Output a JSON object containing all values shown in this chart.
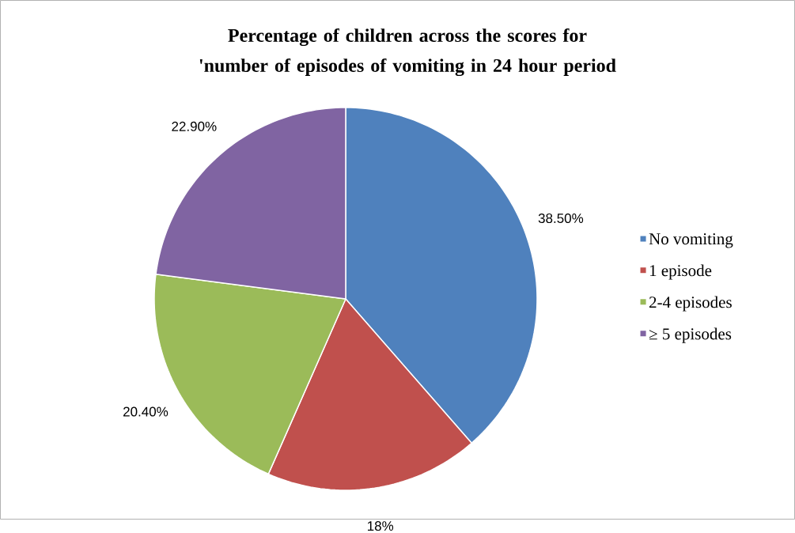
{
  "chart_data": {
    "type": "pie",
    "title": "Percentage of children across the scores for 'number of episodes of vomiting in 24 hour period",
    "categories": [
      "No vomiting",
      "1 episode",
      "2-4 episodes",
      "≥ 5 episodes"
    ],
    "values": [
      38.5,
      18,
      20.4,
      22.9
    ],
    "value_labels": [
      "38.50%",
      "18%",
      "20.40%",
      "22.90%"
    ],
    "colors": [
      "#4f81bd",
      "#c0504d",
      "#9bbb59",
      "#8064a2"
    ],
    "legend": "right"
  }
}
